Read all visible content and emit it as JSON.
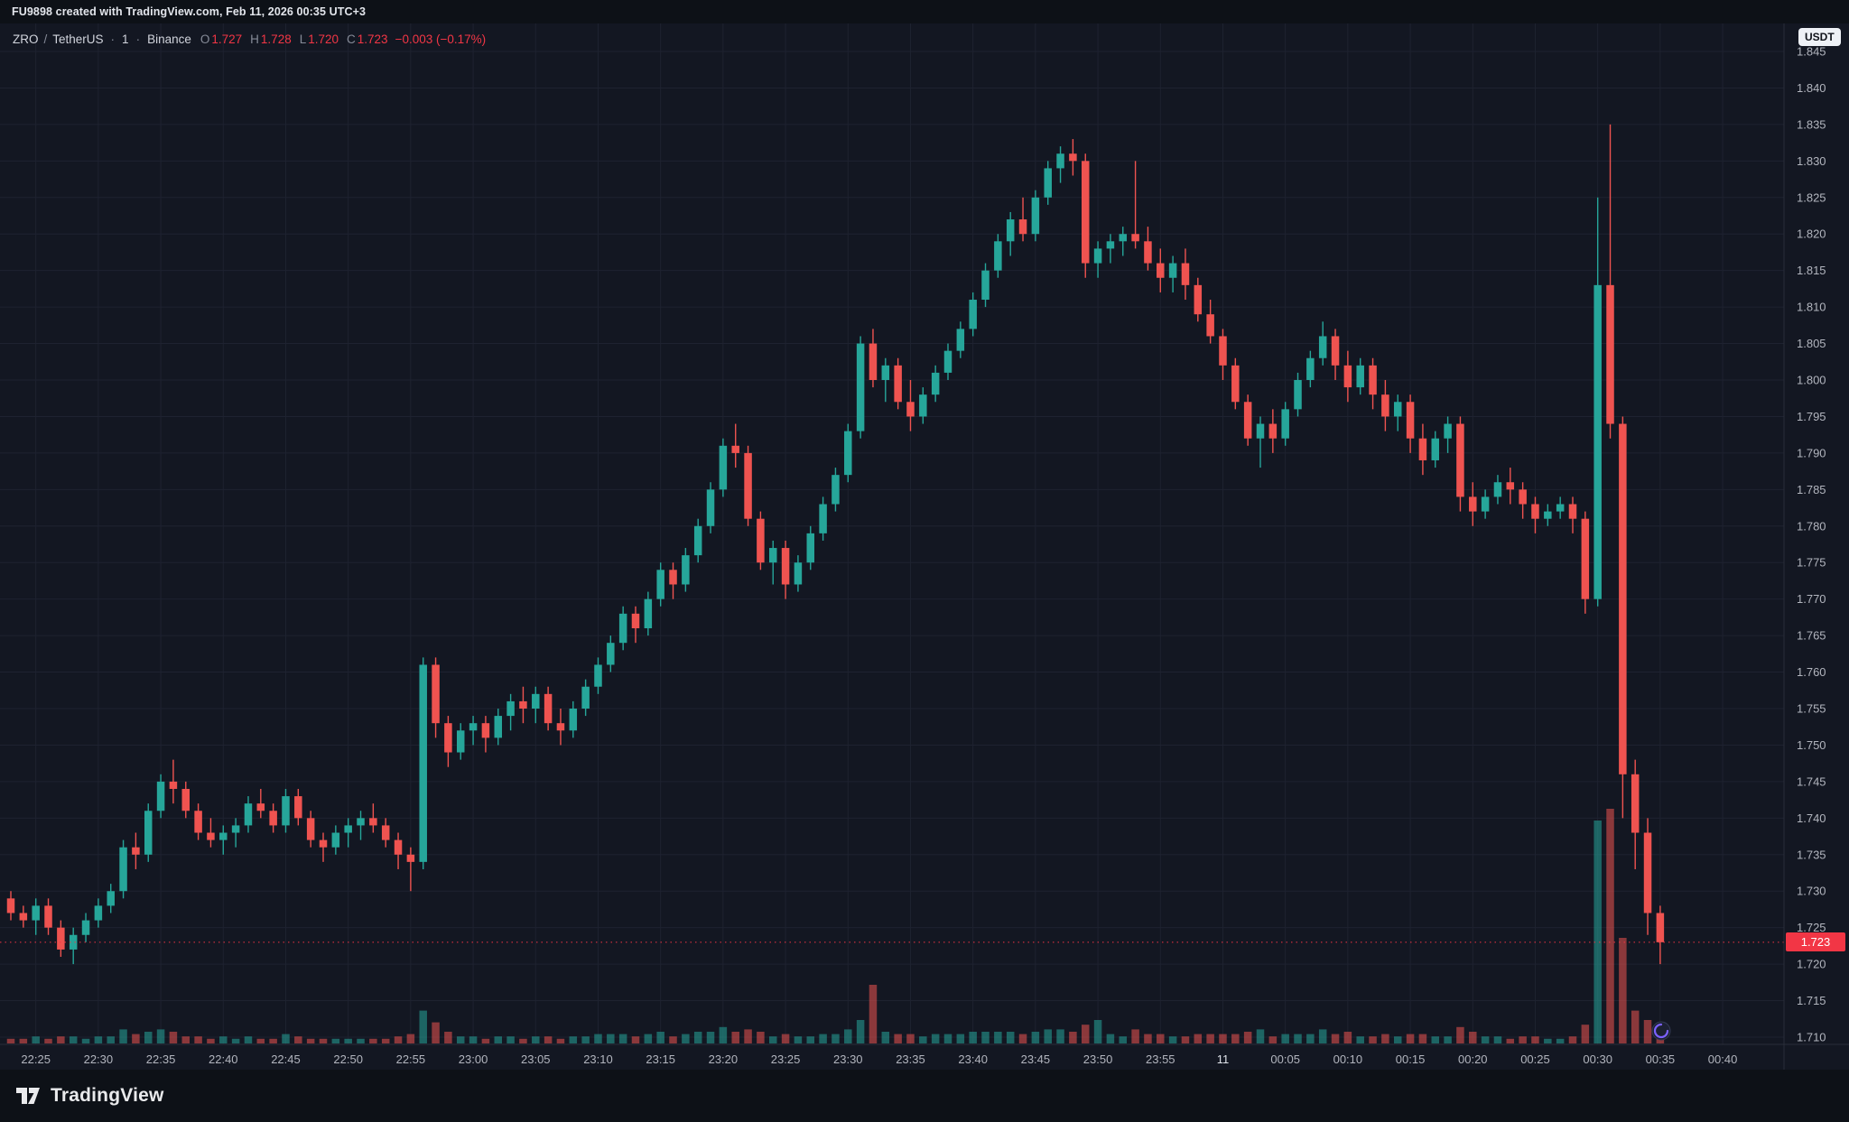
{
  "attribution": {
    "text": "FU9898 created with TradingView.com, Feb 11, 2026 00:35 UTC+3"
  },
  "legend": {
    "symbol": "ZRO",
    "sep_slash": "/",
    "quote": "TetherUS",
    "sep_dot": "·",
    "interval": "1",
    "exchange": "Binance",
    "ohlc": {
      "o_label": "O",
      "o": "1.727",
      "h_label": "H",
      "h": "1.728",
      "l_label": "L",
      "l": "1.720",
      "c_label": "C",
      "c": "1.723",
      "change": "−0.003 (−0.17%)"
    },
    "currency_badge": "USDT"
  },
  "footer": {
    "brand": "TradingView"
  },
  "colors": {
    "background": "#131722",
    "strip_background": "#0d1117",
    "grid": "#1e2230",
    "border": "#2a2e39",
    "up": "#26a69a",
    "down": "#ef5350",
    "vol_up": "rgba(38,166,154,0.55)",
    "vol_down": "rgba(239,83,80,0.55)",
    "accent_red": "#f23645",
    "axis_text": "#b2b5be",
    "axis_text_strong": "#dfe3ea",
    "legend_text": "#d1d4dc",
    "white": "#e9eaec"
  },
  "chart_data": {
    "type": "candlestick",
    "title": "ZRO / TetherUS · 1 · Binance",
    "symbol": "ZRO/USDT",
    "exchange": "Binance",
    "interval": "1m",
    "ylim": [
      1.71,
      1.845
    ],
    "price_tick": 0.005,
    "last_price": 1.723,
    "last_price_label": "1.723",
    "volume_unit": "relative_0_100",
    "price_labels": [
      "1.710",
      "1.715",
      "1.720",
      "1.725",
      "1.730",
      "1.735",
      "1.740",
      "1.745",
      "1.750",
      "1.755",
      "1.760",
      "1.765",
      "1.770",
      "1.775",
      "1.780",
      "1.785",
      "1.790",
      "1.795",
      "1.800",
      "1.805",
      "1.810",
      "1.815",
      "1.820",
      "1.825",
      "1.830",
      "1.835",
      "1.840",
      "1.845"
    ],
    "time_labels": [
      "22:25",
      "22:30",
      "22:35",
      "22:40",
      "22:45",
      "22:50",
      "22:55",
      "23:00",
      "23:05",
      "23:10",
      "23:15",
      "23:20",
      "23:25",
      "23:30",
      "23:35",
      "23:40",
      "23:45",
      "23:50",
      "23:55",
      "11",
      "00:05",
      "00:10",
      "00:15",
      "00:20",
      "00:25",
      "00:30",
      "00:35",
      "00:40"
    ],
    "candles_format": [
      "time",
      "open",
      "high",
      "low",
      "close",
      "volume"
    ],
    "candles": [
      [
        "22:23",
        1.729,
        1.73,
        1.726,
        1.727,
        2
      ],
      [
        "22:24",
        1.727,
        1.728,
        1.725,
        1.726,
        2
      ],
      [
        "22:25",
        1.726,
        1.729,
        1.724,
        1.728,
        3
      ],
      [
        "22:26",
        1.728,
        1.729,
        1.724,
        1.725,
        2
      ],
      [
        "22:27",
        1.725,
        1.726,
        1.721,
        1.722,
        3
      ],
      [
        "22:28",
        1.722,
        1.725,
        1.72,
        1.724,
        3
      ],
      [
        "22:29",
        1.724,
        1.727,
        1.723,
        1.726,
        2
      ],
      [
        "22:30",
        1.726,
        1.729,
        1.725,
        1.728,
        3
      ],
      [
        "22:31",
        1.728,
        1.731,
        1.727,
        1.73,
        3
      ],
      [
        "22:32",
        1.73,
        1.737,
        1.729,
        1.736,
        6
      ],
      [
        "22:33",
        1.736,
        1.738,
        1.733,
        1.735,
        4
      ],
      [
        "22:34",
        1.735,
        1.742,
        1.734,
        1.741,
        5
      ],
      [
        "22:35",
        1.741,
        1.746,
        1.74,
        1.745,
        6
      ],
      [
        "22:36",
        1.745,
        1.748,
        1.742,
        1.744,
        5
      ],
      [
        "22:37",
        1.744,
        1.745,
        1.74,
        1.741,
        3
      ],
      [
        "22:38",
        1.741,
        1.742,
        1.737,
        1.738,
        3
      ],
      [
        "22:39",
        1.738,
        1.74,
        1.736,
        1.737,
        2
      ],
      [
        "22:40",
        1.737,
        1.739,
        1.735,
        1.738,
        3
      ],
      [
        "22:41",
        1.738,
        1.74,
        1.736,
        1.739,
        2
      ],
      [
        "22:42",
        1.739,
        1.743,
        1.738,
        1.742,
        3
      ],
      [
        "22:43",
        1.742,
        1.744,
        1.74,
        1.741,
        2
      ],
      [
        "22:44",
        1.741,
        1.742,
        1.738,
        1.739,
        2
      ],
      [
        "22:45",
        1.739,
        1.744,
        1.738,
        1.743,
        4
      ],
      [
        "22:46",
        1.743,
        1.744,
        1.739,
        1.74,
        3
      ],
      [
        "22:47",
        1.74,
        1.741,
        1.736,
        1.737,
        2
      ],
      [
        "22:48",
        1.737,
        1.738,
        1.734,
        1.736,
        2
      ],
      [
        "22:49",
        1.736,
        1.739,
        1.735,
        1.738,
        2
      ],
      [
        "22:50",
        1.738,
        1.74,
        1.736,
        1.739,
        2
      ],
      [
        "22:51",
        1.739,
        1.741,
        1.737,
        1.74,
        2
      ],
      [
        "22:52",
        1.74,
        1.742,
        1.738,
        1.739,
        2
      ],
      [
        "22:53",
        1.739,
        1.74,
        1.736,
        1.737,
        2
      ],
      [
        "22:54",
        1.737,
        1.738,
        1.733,
        1.735,
        3
      ],
      [
        "22:55",
        1.735,
        1.736,
        1.73,
        1.734,
        4
      ],
      [
        "22:56",
        1.734,
        1.762,
        1.733,
        1.761,
        14
      ],
      [
        "22:57",
        1.761,
        1.762,
        1.751,
        1.753,
        9
      ],
      [
        "22:58",
        1.753,
        1.754,
        1.747,
        1.749,
        5
      ],
      [
        "22:59",
        1.749,
        1.753,
        1.748,
        1.752,
        3
      ],
      [
        "23:00",
        1.752,
        1.754,
        1.75,
        1.753,
        3
      ],
      [
        "23:01",
        1.753,
        1.754,
        1.749,
        1.751,
        2
      ],
      [
        "23:02",
        1.751,
        1.755,
        1.75,
        1.754,
        3
      ],
      [
        "23:03",
        1.754,
        1.757,
        1.752,
        1.756,
        3
      ],
      [
        "23:04",
        1.756,
        1.758,
        1.753,
        1.755,
        2
      ],
      [
        "23:05",
        1.755,
        1.758,
        1.753,
        1.757,
        3
      ],
      [
        "23:06",
        1.757,
        1.758,
        1.752,
        1.753,
        3
      ],
      [
        "23:07",
        1.753,
        1.755,
        1.75,
        1.752,
        2
      ],
      [
        "23:08",
        1.752,
        1.756,
        1.751,
        1.755,
        3
      ],
      [
        "23:09",
        1.755,
        1.759,
        1.754,
        1.758,
        3
      ],
      [
        "23:10",
        1.758,
        1.762,
        1.757,
        1.761,
        4
      ],
      [
        "23:11",
        1.761,
        1.765,
        1.76,
        1.764,
        4
      ],
      [
        "23:12",
        1.764,
        1.769,
        1.763,
        1.768,
        4
      ],
      [
        "23:13",
        1.768,
        1.769,
        1.764,
        1.766,
        3
      ],
      [
        "23:14",
        1.766,
        1.771,
        1.765,
        1.77,
        4
      ],
      [
        "23:15",
        1.77,
        1.775,
        1.769,
        1.774,
        5
      ],
      [
        "23:16",
        1.774,
        1.775,
        1.77,
        1.772,
        3
      ],
      [
        "23:17",
        1.772,
        1.777,
        1.771,
        1.776,
        4
      ],
      [
        "23:18",
        1.776,
        1.781,
        1.775,
        1.78,
        5
      ],
      [
        "23:19",
        1.78,
        1.786,
        1.779,
        1.785,
        5
      ],
      [
        "23:20",
        1.785,
        1.792,
        1.784,
        1.791,
        7
      ],
      [
        "23:21",
        1.791,
        1.794,
        1.788,
        1.79,
        5
      ],
      [
        "23:22",
        1.79,
        1.791,
        1.78,
        1.781,
        6
      ],
      [
        "23:23",
        1.781,
        1.782,
        1.774,
        1.775,
        5
      ],
      [
        "23:24",
        1.775,
        1.778,
        1.772,
        1.777,
        3
      ],
      [
        "23:25",
        1.777,
        1.778,
        1.77,
        1.772,
        4
      ],
      [
        "23:26",
        1.772,
        1.776,
        1.771,
        1.775,
        3
      ],
      [
        "23:27",
        1.775,
        1.78,
        1.774,
        1.779,
        3
      ],
      [
        "23:28",
        1.779,
        1.784,
        1.778,
        1.783,
        4
      ],
      [
        "23:29",
        1.783,
        1.788,
        1.782,
        1.787,
        4
      ],
      [
        "23:30",
        1.787,
        1.794,
        1.786,
        1.793,
        6
      ],
      [
        "23:31",
        1.793,
        1.806,
        1.792,
        1.805,
        10
      ],
      [
        "23:32",
        1.805,
        1.807,
        1.799,
        1.8,
        25
      ],
      [
        "23:33",
        1.8,
        1.803,
        1.797,
        1.802,
        5
      ],
      [
        "23:34",
        1.802,
        1.803,
        1.796,
        1.797,
        4
      ],
      [
        "23:35",
        1.797,
        1.8,
        1.793,
        1.795,
        4
      ],
      [
        "23:36",
        1.795,
        1.799,
        1.794,
        1.798,
        3
      ],
      [
        "23:37",
        1.798,
        1.802,
        1.797,
        1.801,
        4
      ],
      [
        "23:38",
        1.801,
        1.805,
        1.8,
        1.804,
        4
      ],
      [
        "23:39",
        1.804,
        1.808,
        1.803,
        1.807,
        4
      ],
      [
        "23:40",
        1.807,
        1.812,
        1.806,
        1.811,
        5
      ],
      [
        "23:41",
        1.811,
        1.816,
        1.81,
        1.815,
        5
      ],
      [
        "23:42",
        1.815,
        1.82,
        1.814,
        1.819,
        5
      ],
      [
        "23:43",
        1.819,
        1.823,
        1.817,
        1.822,
        5
      ],
      [
        "23:44",
        1.822,
        1.825,
        1.819,
        1.82,
        4
      ],
      [
        "23:45",
        1.82,
        1.826,
        1.819,
        1.825,
        5
      ],
      [
        "23:46",
        1.825,
        1.83,
        1.824,
        1.829,
        6
      ],
      [
        "23:47",
        1.829,
        1.832,
        1.827,
        1.831,
        6
      ],
      [
        "23:48",
        1.831,
        1.833,
        1.828,
        1.83,
        5
      ],
      [
        "23:49",
        1.83,
        1.831,
        1.814,
        1.816,
        8
      ],
      [
        "23:50",
        1.816,
        1.819,
        1.814,
        1.818,
        10
      ],
      [
        "23:51",
        1.818,
        1.82,
        1.816,
        1.819,
        4
      ],
      [
        "23:52",
        1.819,
        1.821,
        1.817,
        1.82,
        3
      ],
      [
        "23:53",
        1.82,
        1.83,
        1.818,
        1.819,
        6
      ],
      [
        "23:54",
        1.819,
        1.821,
        1.815,
        1.816,
        4
      ],
      [
        "23:55",
        1.816,
        1.818,
        1.812,
        1.814,
        4
      ],
      [
        "23:56",
        1.814,
        1.817,
        1.812,
        1.816,
        3
      ],
      [
        "23:57",
        1.816,
        1.818,
        1.811,
        1.813,
        3
      ],
      [
        "23:58",
        1.813,
        1.814,
        1.808,
        1.809,
        4
      ],
      [
        "23:59",
        1.809,
        1.811,
        1.805,
        1.806,
        4
      ],
      [
        "00:00",
        1.806,
        1.807,
        1.8,
        1.802,
        4
      ],
      [
        "00:01",
        1.802,
        1.803,
        1.796,
        1.797,
        4
      ],
      [
        "00:02",
        1.797,
        1.798,
        1.791,
        1.792,
        5
      ],
      [
        "00:03",
        1.792,
        1.795,
        1.788,
        1.794,
        6
      ],
      [
        "00:04",
        1.794,
        1.796,
        1.79,
        1.792,
        3
      ],
      [
        "00:05",
        1.792,
        1.797,
        1.791,
        1.796,
        4
      ],
      [
        "00:06",
        1.796,
        1.801,
        1.795,
        1.8,
        4
      ],
      [
        "00:07",
        1.8,
        1.804,
        1.799,
        1.803,
        4
      ],
      [
        "00:08",
        1.803,
        1.808,
        1.802,
        1.806,
        6
      ],
      [
        "00:09",
        1.806,
        1.807,
        1.8,
        1.802,
        4
      ],
      [
        "00:10",
        1.802,
        1.804,
        1.797,
        1.799,
        5
      ],
      [
        "00:11",
        1.799,
        1.803,
        1.798,
        1.802,
        3
      ],
      [
        "00:12",
        1.802,
        1.803,
        1.796,
        1.798,
        3
      ],
      [
        "00:13",
        1.798,
        1.8,
        1.793,
        1.795,
        4
      ],
      [
        "00:14",
        1.795,
        1.798,
        1.793,
        1.797,
        3
      ],
      [
        "00:15",
        1.797,
        1.798,
        1.79,
        1.792,
        4
      ],
      [
        "00:16",
        1.792,
        1.794,
        1.787,
        1.789,
        4
      ],
      [
        "00:17",
        1.789,
        1.793,
        1.788,
        1.792,
        3
      ],
      [
        "00:18",
        1.792,
        1.795,
        1.79,
        1.794,
        3
      ],
      [
        "00:19",
        1.794,
        1.795,
        1.782,
        1.784,
        7
      ],
      [
        "00:20",
        1.784,
        1.786,
        1.78,
        1.782,
        5
      ],
      [
        "00:21",
        1.782,
        1.785,
        1.781,
        1.784,
        3
      ],
      [
        "00:22",
        1.784,
        1.787,
        1.783,
        1.786,
        3
      ],
      [
        "00:23",
        1.786,
        1.788,
        1.783,
        1.785,
        2
      ],
      [
        "00:24",
        1.785,
        1.786,
        1.781,
        1.783,
        3
      ],
      [
        "00:25",
        1.783,
        1.784,
        1.779,
        1.781,
        3
      ],
      [
        "00:26",
        1.781,
        1.783,
        1.78,
        1.782,
        2
      ],
      [
        "00:27",
        1.782,
        1.784,
        1.781,
        1.783,
        2
      ],
      [
        "00:28",
        1.783,
        1.784,
        1.779,
        1.781,
        3
      ],
      [
        "00:29",
        1.781,
        1.782,
        1.768,
        1.77,
        8
      ],
      [
        "00:30",
        1.77,
        1.825,
        1.769,
        1.813,
        95
      ],
      [
        "00:31",
        1.813,
        1.835,
        1.792,
        1.794,
        100
      ],
      [
        "00:32",
        1.794,
        1.795,
        1.74,
        1.746,
        45
      ],
      [
        "00:33",
        1.746,
        1.748,
        1.733,
        1.738,
        14
      ],
      [
        "00:34",
        1.738,
        1.74,
        1.724,
        1.727,
        10
      ],
      [
        "00:35",
        1.727,
        1.728,
        1.72,
        1.723,
        7
      ]
    ]
  }
}
